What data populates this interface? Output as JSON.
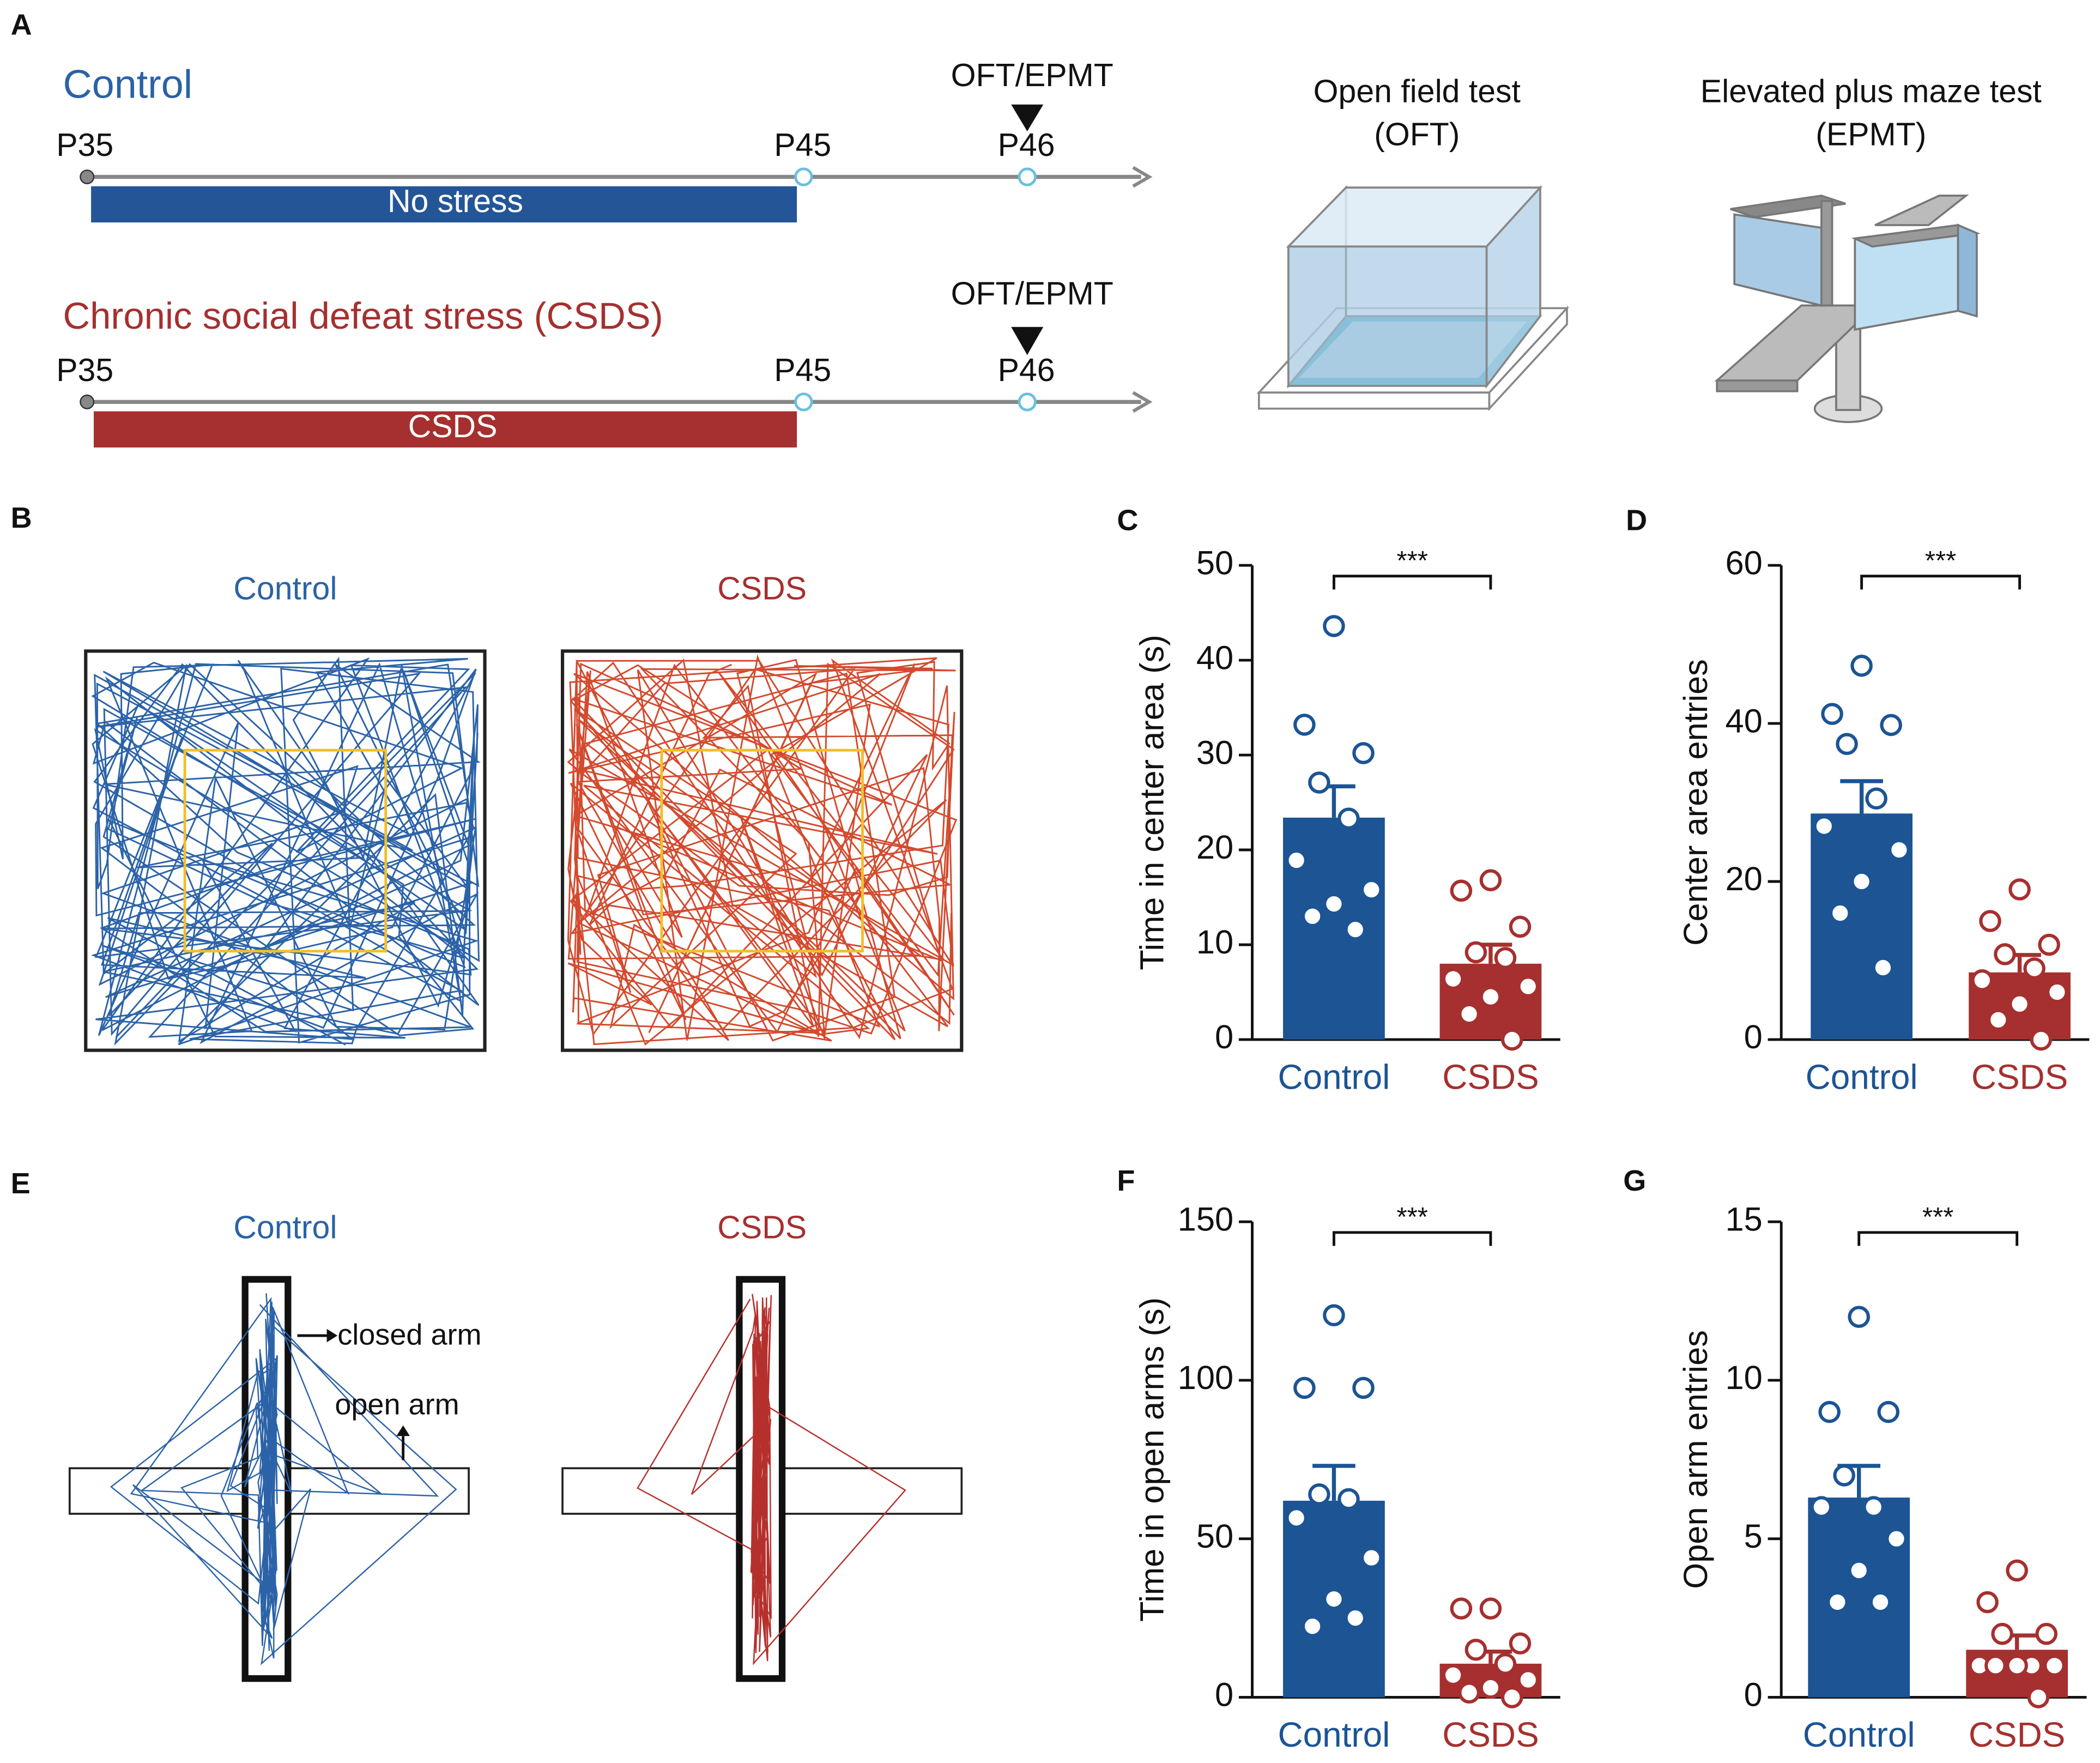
{
  "panel_a": {
    "letter": "A",
    "rows": [
      {
        "name": "Control",
        "start": "P35",
        "mid": "P45",
        "end": "P46",
        "test": "OFT/EPMT",
        "bar": "No stress"
      },
      {
        "name": "Chronic social defeat stress (CSDS)",
        "start": "P35",
        "mid": "P45",
        "end": "P46",
        "test": "OFT/EPMT",
        "bar": "CSDS"
      }
    ],
    "tests": [
      {
        "title": "Open field test",
        "abbr": "(OFT)"
      },
      {
        "title": "Elevated plus maze test",
        "abbr": "(EPMT)"
      }
    ]
  },
  "panel_b": {
    "letter": "B",
    "groups": [
      "Control",
      "CSDS"
    ]
  },
  "panel_e": {
    "letter": "E",
    "groups": [
      "Control",
      "CSDS"
    ],
    "closed_label": "closed arm",
    "open_label": "open arm"
  },
  "chart_data": [
    {
      "type": "bar",
      "panel": "C",
      "ylabel": "Time in center area (s)",
      "categories": [
        "Control",
        "CSDS"
      ],
      "values": [
        23.4,
        8.0
      ],
      "errors": [
        3.3,
        2.0
      ],
      "points": [
        [
          43.6,
          33.2,
          30.2,
          27.1,
          23.3,
          18.9,
          15.8,
          14.3,
          13.0,
          11.6
        ],
        [
          16.8,
          15.7,
          11.9,
          9.2,
          8.6,
          6.4,
          5.6,
          4.5,
          2.7,
          0
        ]
      ],
      "colors": [
        "#1c5494",
        "#a5302f"
      ],
      "ylim": [
        0,
        50
      ],
      "yticks": [
        0,
        10,
        20,
        30,
        40,
        50
      ],
      "significance": "***"
    },
    {
      "type": "bar",
      "panel": "D",
      "ylabel": "Center area entries",
      "categories": [
        "Control",
        "CSDS"
      ],
      "values": [
        28.6,
        8.5
      ],
      "errors": [
        4.1,
        2.2
      ],
      "points": [
        [
          47.3,
          41.2,
          39.8,
          37.4,
          30.5,
          27.0,
          24.0,
          20.0,
          16.0,
          9.1
        ],
        [
          19.0,
          15.0,
          12.0,
          10.8,
          9.0,
          7.5,
          6.0,
          4.5,
          2.5,
          0
        ]
      ],
      "colors": [
        "#1c5494",
        "#a5302f"
      ],
      "ylim": [
        0,
        60
      ],
      "yticks": [
        0,
        20,
        40,
        60
      ],
      "significance": "***"
    },
    {
      "type": "bar",
      "panel": "F",
      "ylabel": "Time in open arms (s)",
      "categories": [
        "Control",
        "CSDS"
      ],
      "values": [
        62,
        10.6
      ],
      "errors": [
        11,
        3.8
      ],
      "points": [
        [
          120.5,
          97.6,
          97.6,
          64.0,
          62.5,
          56.6,
          44.0,
          31.0,
          22.4,
          25.0
        ],
        [
          28.0,
          28.0,
          17.0,
          15.0,
          10.5,
          7.0,
          5.5,
          3.0,
          1.5,
          0
        ]
      ],
      "colors": [
        "#1c5494",
        "#a5302f"
      ],
      "ylim": [
        0,
        150
      ],
      "yticks": [
        0,
        50,
        100,
        150
      ],
      "significance": "***"
    },
    {
      "type": "bar",
      "panel": "G",
      "ylabel": "Open arm entries",
      "categories": [
        "Control",
        "CSDS"
      ],
      "values": [
        6.3,
        1.5
      ],
      "errors": [
        1.0,
        0.45
      ],
      "points": [
        [
          12,
          9,
          9,
          7,
          6,
          6,
          5,
          4,
          3,
          3
        ],
        [
          4,
          3,
          2,
          2,
          1,
          1,
          1,
          1,
          1,
          0
        ]
      ],
      "colors": [
        "#1c5494",
        "#a5302f"
      ],
      "ylim": [
        0,
        15
      ],
      "yticks": [
        0,
        5,
        10,
        15
      ],
      "significance": "***"
    }
  ]
}
